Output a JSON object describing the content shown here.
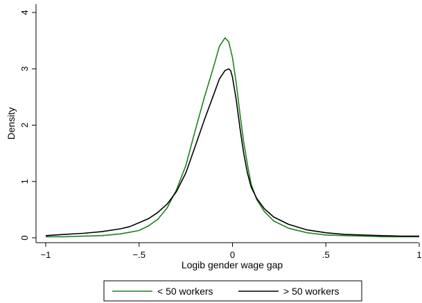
{
  "chart_data": {
    "type": "line",
    "xlabel": "Logib gender wage gap",
    "ylabel": "Density",
    "xlim": [
      -1,
      1
    ],
    "ylim": [
      0,
      4
    ],
    "x_ticks": [
      -1,
      -0.5,
      0,
      0.5,
      1
    ],
    "x_tick_labels": [
      "−1",
      "−.5",
      "0",
      ".5",
      "1"
    ],
    "y_ticks": [
      0,
      1,
      2,
      3,
      4
    ],
    "y_tick_labels": [
      "0",
      "1",
      "2",
      "3",
      "4"
    ],
    "grid": false,
    "legend_position": "bottom",
    "series": [
      {
        "name": "< 50 workers",
        "color": "#1f7f1f",
        "points": [
          [
            -1.0,
            0.02
          ],
          [
            -0.9,
            0.02
          ],
          [
            -0.8,
            0.03
          ],
          [
            -0.7,
            0.04
          ],
          [
            -0.6,
            0.07
          ],
          [
            -0.55,
            0.1
          ],
          [
            -0.5,
            0.13
          ],
          [
            -0.45,
            0.21
          ],
          [
            -0.4,
            0.33
          ],
          [
            -0.35,
            0.53
          ],
          [
            -0.3,
            0.85
          ],
          [
            -0.25,
            1.28
          ],
          [
            -0.2,
            1.9
          ],
          [
            -0.15,
            2.5
          ],
          [
            -0.1,
            3.05
          ],
          [
            -0.07,
            3.4
          ],
          [
            -0.04,
            3.55
          ],
          [
            -0.02,
            3.48
          ],
          [
            0.0,
            3.2
          ],
          [
            0.02,
            2.75
          ],
          [
            0.04,
            2.2
          ],
          [
            0.06,
            1.7
          ],
          [
            0.08,
            1.3
          ],
          [
            0.1,
            0.95
          ],
          [
            0.13,
            0.68
          ],
          [
            0.17,
            0.47
          ],
          [
            0.22,
            0.3
          ],
          [
            0.3,
            0.17
          ],
          [
            0.4,
            0.09
          ],
          [
            0.5,
            0.05
          ],
          [
            0.6,
            0.04
          ],
          [
            0.7,
            0.03
          ],
          [
            0.8,
            0.02
          ],
          [
            0.9,
            0.02
          ],
          [
            1.0,
            0.02
          ]
        ]
      },
      {
        "name": "> 50 workers",
        "color": "#000000",
        "points": [
          [
            -1.0,
            0.04
          ],
          [
            -0.9,
            0.06
          ],
          [
            -0.8,
            0.08
          ],
          [
            -0.7,
            0.11
          ],
          [
            -0.6,
            0.16
          ],
          [
            -0.55,
            0.2
          ],
          [
            -0.5,
            0.27
          ],
          [
            -0.45,
            0.34
          ],
          [
            -0.4,
            0.45
          ],
          [
            -0.35,
            0.6
          ],
          [
            -0.3,
            0.82
          ],
          [
            -0.25,
            1.15
          ],
          [
            -0.2,
            1.62
          ],
          [
            -0.15,
            2.1
          ],
          [
            -0.1,
            2.55
          ],
          [
            -0.07,
            2.82
          ],
          [
            -0.04,
            2.97
          ],
          [
            -0.02,
            3.0
          ],
          [
            -0.01,
            2.97
          ],
          [
            0.0,
            2.85
          ],
          [
            0.02,
            2.45
          ],
          [
            0.04,
            1.95
          ],
          [
            0.06,
            1.5
          ],
          [
            0.08,
            1.15
          ],
          [
            0.1,
            0.9
          ],
          [
            0.13,
            0.7
          ],
          [
            0.17,
            0.52
          ],
          [
            0.22,
            0.37
          ],
          [
            0.3,
            0.24
          ],
          [
            0.4,
            0.14
          ],
          [
            0.5,
            0.09
          ],
          [
            0.6,
            0.06
          ],
          [
            0.7,
            0.05
          ],
          [
            0.8,
            0.04
          ],
          [
            0.9,
            0.03
          ],
          [
            1.0,
            0.03
          ]
        ]
      }
    ]
  }
}
